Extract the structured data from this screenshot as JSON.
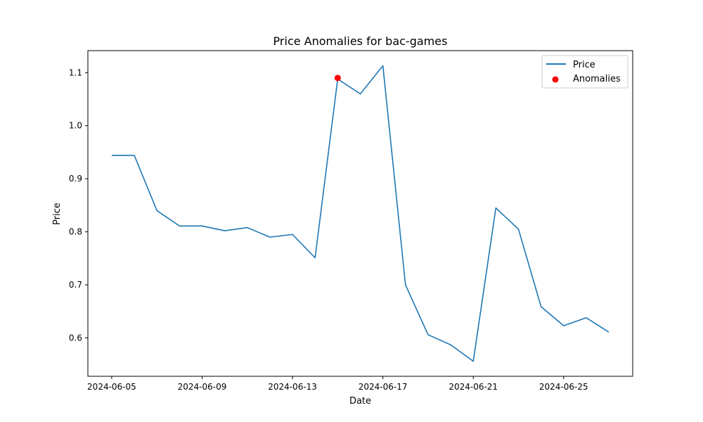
{
  "chart_data": {
    "type": "line",
    "title": "Price Anomalies for bac-games",
    "xlabel": "Date",
    "ylabel": "Price",
    "x": [
      "2024-06-05",
      "2024-06-06",
      "2024-06-07",
      "2024-06-08",
      "2024-06-09",
      "2024-06-10",
      "2024-06-11",
      "2024-06-12",
      "2024-06-13",
      "2024-06-14",
      "2024-06-15",
      "2024-06-16",
      "2024-06-17",
      "2024-06-18",
      "2024-06-19",
      "2024-06-20",
      "2024-06-21",
      "2024-06-22",
      "2024-06-23",
      "2024-06-24",
      "2024-06-25",
      "2024-06-26",
      "2024-06-27"
    ],
    "series": [
      {
        "name": "Price",
        "kind": "line",
        "color": "#1f77b4",
        "values": [
          0.944,
          0.944,
          0.84,
          0.811,
          0.811,
          0.802,
          0.808,
          0.79,
          0.795,
          0.751,
          1.088,
          1.06,
          1.113,
          0.7,
          0.606,
          0.587,
          0.556,
          0.845,
          0.805,
          0.659,
          0.623,
          0.638,
          0.611
        ]
      },
      {
        "name": "Anomalies",
        "kind": "scatter",
        "color": "#ff0000",
        "points": [
          {
            "x": "2024-06-15",
            "y": 1.09
          }
        ]
      }
    ],
    "x_ticks": [
      "2024-06-05",
      "2024-06-09",
      "2024-06-13",
      "2024-06-17",
      "2024-06-21",
      "2024-06-25"
    ],
    "y_ticks": [
      "0.6",
      "0.7",
      "0.8",
      "0.9",
      "1.0",
      "1.1"
    ],
    "xlim": [
      "2024-06-03 22:40",
      "2024-06-28 01:20"
    ],
    "ylim": [
      0.5277,
      1.1415
    ],
    "grid": false,
    "legend_position": "upper right"
  }
}
